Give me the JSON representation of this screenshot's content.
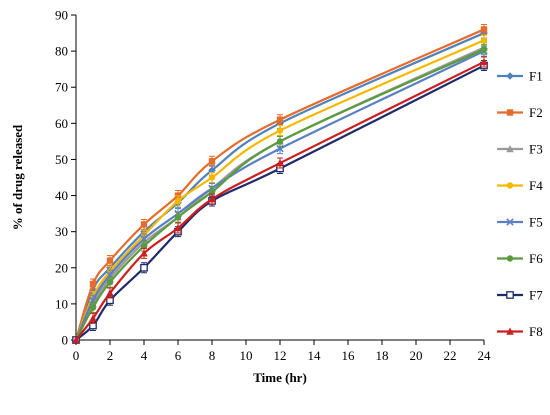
{
  "chart_data": {
    "type": "line",
    "xlabel": "Time (hr)",
    "ylabel": "% of drug released",
    "xlim": [
      0,
      24
    ],
    "ylim": [
      0,
      90
    ],
    "xticks": [
      0,
      2,
      4,
      6,
      8,
      10,
      12,
      14,
      16,
      18,
      20,
      22,
      24
    ],
    "yticks": [
      0,
      10,
      20,
      30,
      40,
      50,
      60,
      70,
      80,
      90
    ],
    "grid": false,
    "legend_position": "right",
    "error_bars": true,
    "x": [
      0,
      1,
      2,
      4,
      6,
      8,
      12,
      24
    ],
    "series": [
      {
        "name": "F1",
        "color": "#4f81bd",
        "marker": "diamond",
        "values": [
          0,
          14,
          20,
          30,
          38,
          47,
          60,
          85
        ]
      },
      {
        "name": "F2",
        "color": "#e46c2c",
        "marker": "square",
        "values": [
          0,
          15.5,
          22,
          32,
          40,
          49.5,
          61,
          86
        ]
      },
      {
        "name": "F3",
        "color": "#9a9a9a",
        "marker": "triangle",
        "values": [
          0,
          10,
          17,
          27,
          34,
          42,
          55,
          81
        ]
      },
      {
        "name": "F4",
        "color": "#f5b800",
        "marker": "circle",
        "values": [
          0,
          12,
          19,
          29,
          38.5,
          45,
          58,
          83
        ]
      },
      {
        "name": "F5",
        "color": "#5b7fc4",
        "marker": "x",
        "values": [
          0,
          11,
          18,
          28,
          35,
          42,
          53,
          80
        ]
      },
      {
        "name": "F6",
        "color": "#5b9b3e",
        "marker": "circle",
        "values": [
          0,
          9,
          16,
          26,
          34,
          41,
          55,
          80.5
        ]
      },
      {
        "name": "F7",
        "color": "#1f2a6b",
        "marker": "square-open",
        "values": [
          0,
          4,
          11,
          20,
          30,
          38.5,
          47.5,
          76
        ]
      },
      {
        "name": "F8",
        "color": "#cc1f1f",
        "marker": "triangle",
        "values": [
          0,
          6,
          13,
          24,
          31,
          39,
          49,
          77
        ]
      }
    ]
  }
}
